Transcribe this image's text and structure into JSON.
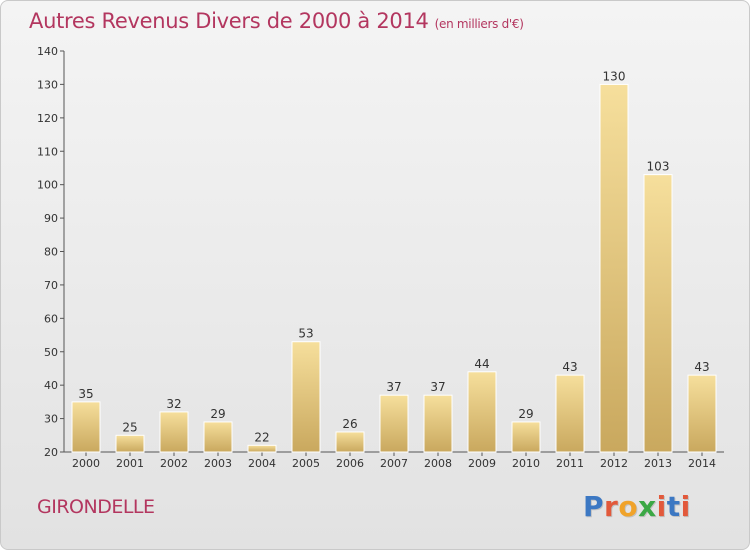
{
  "title": "Autres Revenus Divers de 2000 à 2014",
  "unit": "(en milliers d'€)",
  "commune": "GIRONDELLE",
  "logo": "Proxiti",
  "colors": {
    "title": "#b3365f",
    "bar_light": "#f6df9c",
    "bar_dark": "#c9a85e",
    "logo": [
      "#3c78c3",
      "#e2593b",
      "#f0a32a",
      "#3ba845",
      "#e2593b",
      "#3c78c3",
      "#e2593b"
    ]
  },
  "chart_data": {
    "type": "bar",
    "title": "Autres Revenus Divers de 2000 à 2014",
    "subtitle": "(en milliers d'€)",
    "xlabel": "",
    "ylabel": "",
    "categories": [
      "2000",
      "2001",
      "2002",
      "2003",
      "2004",
      "2005",
      "2006",
      "2007",
      "2008",
      "2009",
      "2010",
      "2011",
      "2012",
      "2013",
      "2014"
    ],
    "values": [
      35,
      25,
      32,
      29,
      22,
      53,
      26,
      37,
      37,
      44,
      29,
      43,
      130,
      103,
      43
    ],
    "ylim": [
      20,
      140
    ],
    "yticks": [
      20,
      30,
      40,
      50,
      60,
      70,
      80,
      90,
      100,
      110,
      120,
      130,
      140
    ],
    "grid": false,
    "legend": "none"
  }
}
